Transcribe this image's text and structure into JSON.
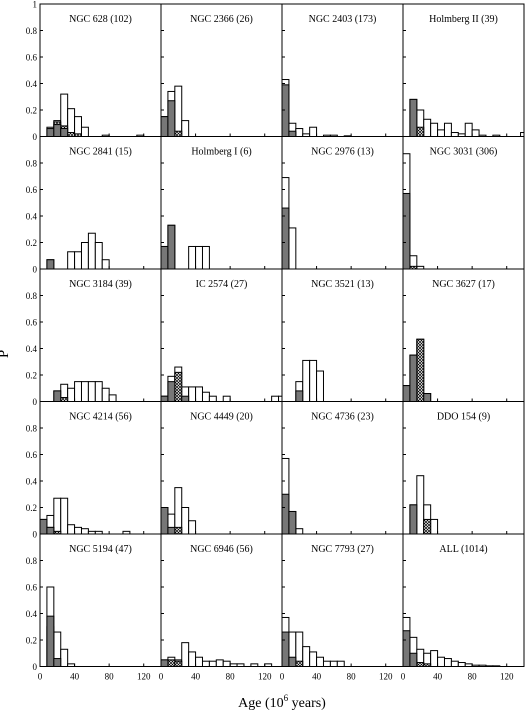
{
  "figure": {
    "ylabel": "P",
    "xlabel_prefix": "Age (10",
    "xlabel_exp": "6",
    "xlabel_suffix": " years)"
  },
  "colors": {
    "axis": "#000000",
    "open_bar": "#ffffff",
    "dark_bar": "#777777",
    "hatch": "#000000"
  },
  "chart_data": {
    "type": "bar",
    "subtype": "grid of histograms (open = total, solid grey and cross-hatched = sub-samples)",
    "bin_width": 8,
    "xlim": [
      0,
      140
    ],
    "ylim": [
      0,
      1
    ],
    "x_ticks": [
      0,
      40,
      80,
      120
    ],
    "y_ticks": [
      0,
      0.2,
      0.4,
      0.6,
      0.8,
      1
    ],
    "y_tick_labels": [
      "0",
      "0.2",
      "0.4",
      "0.6",
      "0.8",
      "1"
    ],
    "x_tick_labels": [
      "0",
      "40",
      "80",
      "120"
    ],
    "panels": [
      {
        "title": "NGC 628 (102)",
        "open": [
          [
            8,
            0.07
          ],
          [
            16,
            0.12
          ],
          [
            24,
            0.32
          ],
          [
            32,
            0.21
          ],
          [
            40,
            0.15
          ],
          [
            48,
            0.07
          ],
          [
            72,
            0.01
          ],
          [
            112,
            0.01
          ]
        ],
        "dark": [
          [
            8,
            0.06
          ],
          [
            16,
            0.09
          ],
          [
            24,
            0.06
          ]
        ],
        "hatch": [
          [
            16,
            0.11
          ],
          [
            24,
            0.08
          ],
          [
            32,
            0.03
          ],
          [
            40,
            0.02
          ]
        ]
      },
      {
        "title": "NGC 2366 (26)",
        "open": [
          [
            0,
            0.15
          ],
          [
            8,
            0.34
          ],
          [
            16,
            0.38
          ],
          [
            24,
            0.12
          ]
        ],
        "dark": [
          [
            0,
            0.15
          ],
          [
            8,
            0.27
          ]
        ],
        "hatch": [
          [
            16,
            0.04
          ]
        ]
      },
      {
        "title": "NGC 2403 (173)",
        "open": [
          [
            0,
            0.43
          ],
          [
            8,
            0.1
          ],
          [
            16,
            0.06
          ],
          [
            24,
            0.02
          ],
          [
            32,
            0.07
          ],
          [
            48,
            0.01
          ],
          [
            56,
            0.01
          ],
          [
            72,
            0.005
          ]
        ],
        "dark": [
          [
            0,
            0.39
          ],
          [
            8,
            0.04
          ]
        ],
        "hatch": [
          [
            0,
            0.02
          ],
          [
            8,
            0.03
          ]
        ]
      },
      {
        "title": "Holmberg II (39)",
        "open": [
          [
            8,
            0.28
          ],
          [
            16,
            0.2
          ],
          [
            24,
            0.13
          ],
          [
            32,
            0.1
          ],
          [
            40,
            0.05
          ],
          [
            48,
            0.1
          ],
          [
            56,
            0.03
          ],
          [
            64,
            0.02
          ],
          [
            72,
            0.1
          ],
          [
            80,
            0.05
          ],
          [
            88,
            0.01
          ],
          [
            104,
            0.01
          ],
          [
            136,
            0.03
          ]
        ],
        "dark": [
          [
            8,
            0.28
          ]
        ],
        "hatch": [
          [
            16,
            0.07
          ]
        ]
      },
      {
        "title": "NGC 2841 (15)",
        "open": [
          [
            8,
            0.07
          ],
          [
            32,
            0.13
          ],
          [
            40,
            0.13
          ],
          [
            48,
            0.2
          ],
          [
            56,
            0.27
          ],
          [
            64,
            0.2
          ],
          [
            72,
            0.07
          ]
        ],
        "dark": [
          [
            8,
            0.07
          ]
        ],
        "hatch": []
      },
      {
        "title": "Holmberg I (6)",
        "open": [
          [
            0,
            0.17
          ],
          [
            8,
            0.33
          ],
          [
            32,
            0.17
          ],
          [
            40,
            0.17
          ],
          [
            48,
            0.17
          ]
        ],
        "dark": [
          [
            0,
            0.17
          ],
          [
            8,
            0.33
          ]
        ],
        "hatch": []
      },
      {
        "title": "NGC 2976 (13)",
        "open": [
          [
            0,
            0.69
          ],
          [
            8,
            0.31
          ]
        ],
        "dark": [
          [
            0,
            0.46
          ]
        ],
        "hatch": []
      },
      {
        "title": "NGC 3031 (306)",
        "open": [
          [
            0,
            0.87
          ],
          [
            8,
            0.1
          ],
          [
            16,
            0.02
          ]
        ],
        "dark": [
          [
            0,
            0.57
          ]
        ],
        "hatch": [
          [
            0,
            0.02
          ],
          [
            8,
            0.02
          ]
        ]
      },
      {
        "title": "NGC 3184 (39)",
        "open": [
          [
            16,
            0.08
          ],
          [
            24,
            0.13
          ],
          [
            32,
            0.1
          ],
          [
            40,
            0.15
          ],
          [
            48,
            0.15
          ],
          [
            56,
            0.15
          ],
          [
            64,
            0.15
          ],
          [
            72,
            0.1
          ],
          [
            80,
            0.05
          ]
        ],
        "dark": [
          [
            16,
            0.08
          ]
        ],
        "hatch": [
          [
            24,
            0.03
          ]
        ]
      },
      {
        "title": "IC 2574 (27)",
        "open": [
          [
            0,
            0.04
          ],
          [
            8,
            0.19
          ],
          [
            16,
            0.26
          ],
          [
            24,
            0.11
          ],
          [
            32,
            0.11
          ],
          [
            40,
            0.11
          ],
          [
            48,
            0.07
          ],
          [
            56,
            0.04
          ],
          [
            72,
            0.04
          ],
          [
            128,
            0.04
          ],
          [
            136,
            0.04
          ]
        ],
        "dark": [
          [
            0,
            0.04
          ],
          [
            8,
            0.15
          ],
          [
            24,
            0.04
          ]
        ],
        "hatch": [
          [
            16,
            0.22
          ]
        ]
      },
      {
        "title": "NGC 3521 (13)",
        "open": [
          [
            16,
            0.15
          ],
          [
            24,
            0.31
          ],
          [
            32,
            0.31
          ],
          [
            40,
            0.23
          ]
        ],
        "dark": [
          [
            16,
            0.08
          ]
        ],
        "hatch": []
      },
      {
        "title": "NGC 3627 (17)",
        "open": [
          [
            0,
            0.12
          ],
          [
            8,
            0.35
          ],
          [
            16,
            0.47
          ],
          [
            24,
            0.06
          ]
        ],
        "dark": [
          [
            0,
            0.12
          ],
          [
            8,
            0.35
          ],
          [
            24,
            0.06
          ]
        ],
        "hatch": [
          [
            16,
            0.47
          ]
        ]
      },
      {
        "title": "NGC 4214 (56)",
        "open": [
          [
            0,
            0.11
          ],
          [
            8,
            0.14
          ],
          [
            16,
            0.27
          ],
          [
            24,
            0.27
          ],
          [
            32,
            0.07
          ],
          [
            40,
            0.05
          ],
          [
            48,
            0.04
          ],
          [
            56,
            0.02
          ],
          [
            64,
            0.02
          ],
          [
            96,
            0.02
          ]
        ],
        "dark": [
          [
            0,
            0.11
          ],
          [
            8,
            0.05
          ]
        ],
        "hatch": [
          [
            8,
            0.05
          ],
          [
            16,
            0.02
          ]
        ]
      },
      {
        "title": "NGC 4449 (20)",
        "open": [
          [
            0,
            0.2
          ],
          [
            8,
            0.15
          ],
          [
            16,
            0.35
          ],
          [
            24,
            0.2
          ],
          [
            32,
            0.1
          ]
        ],
        "dark": [
          [
            0,
            0.2
          ],
          [
            8,
            0.05
          ]
        ],
        "hatch": [
          [
            16,
            0.05
          ]
        ]
      },
      {
        "title": "NGC 4736 (23)",
        "open": [
          [
            0,
            0.57
          ],
          [
            8,
            0.17
          ],
          [
            16,
            0.04
          ]
        ],
        "dark": [
          [
            0,
            0.3
          ],
          [
            8,
            0.17
          ]
        ],
        "hatch": [
          [
            0,
            0.04
          ],
          [
            8,
            0.04
          ]
        ]
      },
      {
        "title": "DDO 154 (9)",
        "open": [
          [
            8,
            0.22
          ],
          [
            16,
            0.44
          ],
          [
            24,
            0.22
          ],
          [
            32,
            0.11
          ]
        ],
        "dark": [
          [
            8,
            0.22
          ]
        ],
        "hatch": [
          [
            24,
            0.11
          ]
        ]
      },
      {
        "title": "NGC 5194 (47)",
        "open": [
          [
            8,
            0.6
          ],
          [
            16,
            0.26
          ],
          [
            24,
            0.13
          ],
          [
            32,
            0.02
          ]
        ],
        "dark": [
          [
            8,
            0.38
          ],
          [
            16,
            0.06
          ]
        ],
        "hatch": [
          [
            8,
            0.3
          ]
        ]
      },
      {
        "title": "NGC 6946 (56)",
        "open": [
          [
            0,
            0.05
          ],
          [
            8,
            0.07
          ],
          [
            16,
            0.05
          ],
          [
            24,
            0.18
          ],
          [
            32,
            0.11
          ],
          [
            40,
            0.07
          ],
          [
            48,
            0.04
          ],
          [
            56,
            0.04
          ],
          [
            64,
            0.05
          ],
          [
            72,
            0.04
          ],
          [
            80,
            0.02
          ],
          [
            88,
            0.02
          ],
          [
            104,
            0.02
          ],
          [
            120,
            0.02
          ]
        ],
        "dark": [
          [
            0,
            0.05
          ]
        ],
        "hatch": [
          [
            8,
            0.05
          ],
          [
            16,
            0.04
          ]
        ]
      },
      {
        "title": "NGC 7793 (27)",
        "open": [
          [
            0,
            0.37
          ],
          [
            8,
            0.26
          ],
          [
            16,
            0.26
          ],
          [
            24,
            0.15
          ],
          [
            32,
            0.11
          ],
          [
            40,
            0.07
          ],
          [
            48,
            0.04
          ],
          [
            56,
            0.04
          ],
          [
            64,
            0.04
          ]
        ],
        "dark": [
          [
            0,
            0.26
          ],
          [
            8,
            0.07
          ]
        ],
        "hatch": [
          [
            0,
            0.04
          ],
          [
            8,
            0.04
          ],
          [
            16,
            0.04
          ]
        ]
      },
      {
        "title": "ALL (1014)",
        "open": [
          [
            0,
            0.37
          ],
          [
            8,
            0.22
          ],
          [
            16,
            0.13
          ],
          [
            24,
            0.1
          ],
          [
            32,
            0.12
          ],
          [
            40,
            0.07
          ],
          [
            48,
            0.06
          ],
          [
            56,
            0.04
          ],
          [
            64,
            0.03
          ],
          [
            72,
            0.02
          ],
          [
            80,
            0.01
          ],
          [
            88,
            0.01
          ],
          [
            96,
            0.005
          ],
          [
            104,
            0.005
          ]
        ],
        "dark": [
          [
            0,
            0.27
          ],
          [
            8,
            0.1
          ]
        ],
        "hatch": [
          [
            0,
            0.04
          ],
          [
            8,
            0.05
          ],
          [
            16,
            0.03
          ],
          [
            24,
            0.02
          ]
        ]
      }
    ]
  }
}
